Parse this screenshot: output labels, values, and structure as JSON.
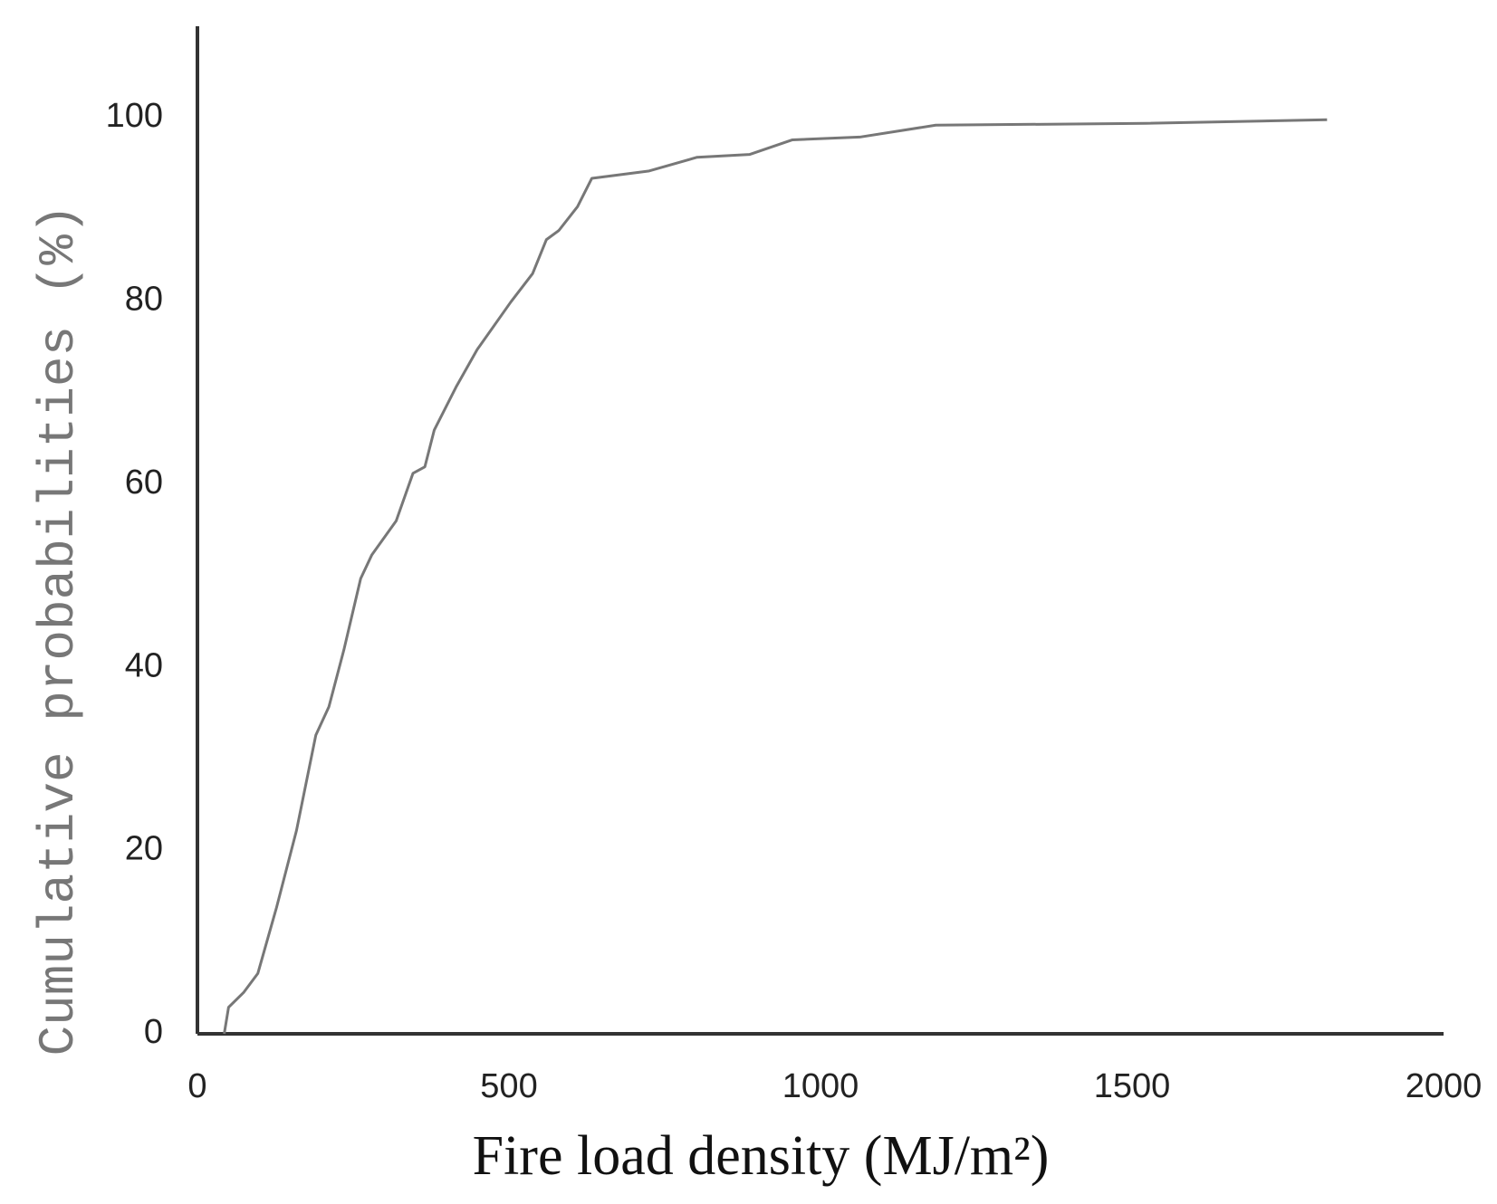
{
  "chart_data": {
    "type": "line",
    "xlabel": "Fire load density (MJ/m²)",
    "ylabel": "Cumulative probabilities (%)",
    "x": [
      43,
      50,
      74,
      97,
      127,
      159,
      190,
      211,
      235,
      262,
      280,
      319,
      346,
      365,
      380,
      415,
      449,
      503,
      538,
      560,
      580,
      610,
      633,
      725,
      802,
      886,
      955,
      1063,
      1185,
      1522,
      1813
    ],
    "values": [
      0,
      2.9,
      4.5,
      6.6,
      13.8,
      22.2,
      32.6,
      35.7,
      41.9,
      49.7,
      52.3,
      56,
      61.2,
      61.9,
      65.9,
      70.6,
      74.7,
      79.9,
      83,
      86.7,
      87.7,
      90.3,
      93.4,
      94.2,
      95.7,
      96,
      97.6,
      97.9,
      99.2,
      99.4,
      99.8
    ],
    "color": "#777777",
    "xlim": [
      0,
      2000
    ],
    "xticks": [
      0,
      500,
      1000,
      1500,
      2000
    ],
    "ylim": [
      0,
      110
    ],
    "yticks": [
      0,
      20,
      40,
      60,
      80,
      100
    ],
    "grid": false
  }
}
